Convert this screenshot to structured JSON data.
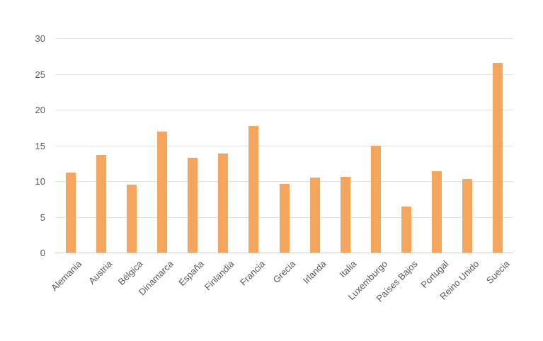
{
  "chart_data": {
    "type": "bar",
    "title": "",
    "xlabel": "",
    "ylabel": "",
    "categories": [
      "Alemania",
      "Austria",
      "Bélgica",
      "Dinamarca",
      "España",
      "Finlandia",
      "Francia",
      "Grecia",
      "Irlanda",
      "Italia",
      "Luxemburgo",
      "Países Bajos",
      "Portugal",
      "Reino Unido",
      "Suecia"
    ],
    "values": [
      11.2,
      13.7,
      9.5,
      16.9,
      13.3,
      13.9,
      17.7,
      9.6,
      10.5,
      10.6,
      15.0,
      6.4,
      11.4,
      10.3,
      26.5
    ],
    "ylim": [
      0,
      30
    ],
    "yticks": [
      0,
      5,
      10,
      15,
      20,
      25,
      30
    ],
    "grid": true,
    "legend": false,
    "x_label_rotation_deg": -45,
    "colors": {
      "bar": "#F5A65C",
      "gridline": "#E0E0E0",
      "baseline": "#CFCFCF",
      "tick_text": "#595959",
      "background": "#FFFFFF"
    }
  }
}
